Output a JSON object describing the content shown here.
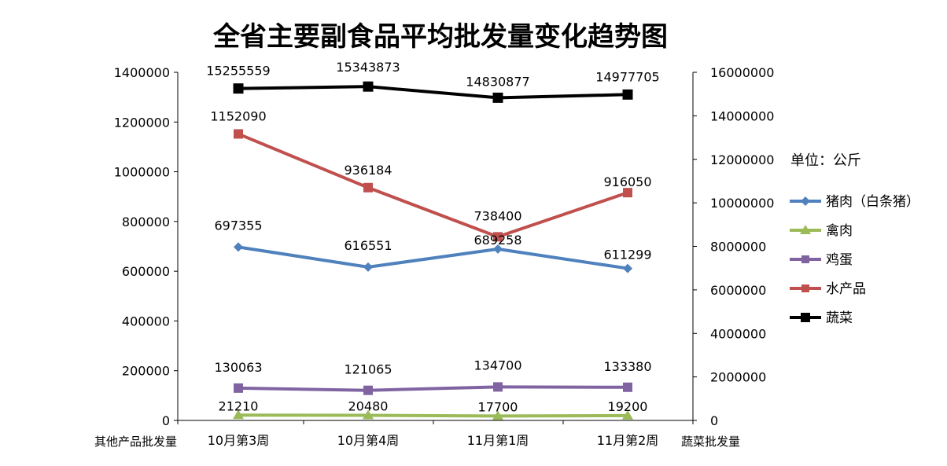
{
  "chart_data": {
    "type": "line",
    "title": "全省主要副食品平均批发量变化趋势图",
    "categories": [
      "10月第3周",
      "10月第4周",
      "11月第1周",
      "11月第2周"
    ],
    "y_left": {
      "label": "其他产品批发量",
      "range": [
        0,
        1400000
      ],
      "ticks": [
        "0",
        "200000",
        "400000",
        "600000",
        "800000",
        "1000000",
        "1200000",
        "1400000"
      ]
    },
    "y_right": {
      "label": "蔬菜批发量",
      "range": [
        0,
        16000000
      ],
      "ticks": [
        "0",
        "2000000",
        "4000000",
        "6000000",
        "8000000",
        "10000000",
        "12000000",
        "14000000",
        "16000000"
      ]
    },
    "unit_note": "单位：公斤",
    "legend_position": "right",
    "grid": false,
    "series": [
      {
        "name": "猪肉（白条猪）",
        "axis": "left",
        "color": "#4f81bd",
        "marker": "diamond",
        "values": [
          697355,
          616551,
          689258,
          611299
        ],
        "labels": [
          "697355",
          "616551",
          "689258",
          "611299"
        ]
      },
      {
        "name": "禽肉",
        "axis": "left",
        "color": "#9bbb59",
        "marker": "triangle",
        "values": [
          21210,
          20480,
          17700,
          19200
        ],
        "labels": [
          "21210",
          "20480",
          "17700",
          "19200"
        ]
      },
      {
        "name": "鸡蛋",
        "axis": "left",
        "color": "#8064a2",
        "marker": "square",
        "values": [
          130063,
          121065,
          134700,
          133380
        ],
        "labels": [
          "130063",
          "121065",
          "134700",
          "133380"
        ]
      },
      {
        "name": "水产品",
        "axis": "left",
        "color": "#c0504d",
        "marker": "square",
        "values": [
          1152090,
          936184,
          738400,
          916050
        ],
        "labels": [
          "1152090",
          "936184",
          "738400",
          "916050"
        ]
      },
      {
        "name": "蔬菜",
        "axis": "right",
        "color": "#000000",
        "marker": "square",
        "values": [
          15255559,
          15343873,
          14830877,
          14977705
        ],
        "labels": [
          "15255559",
          "15343873",
          "14830877",
          "14977705"
        ]
      }
    ]
  }
}
